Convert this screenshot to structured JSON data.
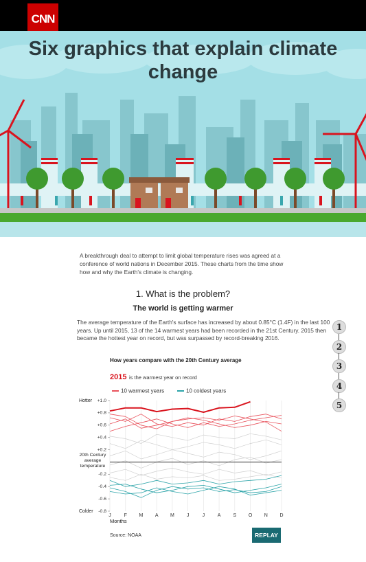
{
  "header": {
    "logo": "CNN"
  },
  "hero": {
    "title": "Six graphics that explain climate change"
  },
  "intro": "A breakthrough deal to attempt to limit global temperature rises was agreed at a conference of world nations in December 2015. These charts from the time show how and why the Earth's climate is changing.",
  "section": {
    "heading": "1. What is the problem?",
    "subheading": "The world is getting warmer",
    "paragraph": "The average temperature of the Earth's surface has increased by about 0.85°C (1.4F) in the last 100 years. Up until 2015, 13 of the 14 warmest years had been recorded in the 21st Century. 2015 then became the hottest year on record, but was surpassed by record-breaking 2016."
  },
  "nav": [
    "1",
    "2",
    "3",
    "4",
    "5"
  ],
  "chart_data": {
    "type": "line",
    "title": "How years compare with the 20th Century average",
    "highlight": {
      "name": "2015",
      "note": "is the warmest year on record",
      "color": "#d9141e",
      "values": [
        0.83,
        0.88,
        0.88,
        0.82,
        0.86,
        0.87,
        0.81,
        0.88,
        0.89,
        0.98,
        null,
        null
      ]
    },
    "categories": [
      "J",
      "F",
      "M",
      "A",
      "M",
      "J",
      "J",
      "A",
      "S",
      "O",
      "N",
      "D"
    ],
    "x_label": "Months",
    "y_top_label": "Hotter",
    "y_bottom_label": "Colder",
    "zero_label": "20th Century average temperature",
    "ylim": [
      -0.8,
      1.0
    ],
    "yticks": [
      {
        "value": 1.0,
        "label": "+1.0"
      },
      {
        "value": 0.8,
        "label": "+0.8"
      },
      {
        "value": 0.6,
        "label": "+0.6"
      },
      {
        "value": 0.4,
        "label": "+0.4"
      },
      {
        "value": 0.2,
        "label": "+0.2"
      },
      {
        "value": -0.2,
        "label": "-0.2"
      },
      {
        "value": -0.4,
        "label": "-0.4"
      },
      {
        "value": -0.6,
        "label": "-0.6"
      },
      {
        "value": -0.8,
        "label": "-0.8"
      }
    ],
    "zero_line": true,
    "series": [
      {
        "name": "10 warmest years",
        "color": "#e8505a",
        "lines": [
          [
            0.62,
            0.7,
            0.55,
            0.6,
            0.66,
            0.7,
            0.72,
            0.68,
            0.75,
            0.7,
            0.65,
            0.5
          ],
          [
            0.72,
            0.66,
            0.78,
            0.62,
            0.58,
            0.64,
            0.6,
            0.7,
            0.66,
            0.74,
            0.78,
            0.7
          ],
          [
            0.5,
            0.58,
            0.64,
            0.7,
            0.62,
            0.56,
            0.64,
            0.58,
            0.62,
            0.68,
            0.72,
            0.76
          ],
          [
            0.78,
            0.74,
            0.6,
            0.54,
            0.66,
            0.72,
            0.68,
            0.62,
            0.56,
            0.6,
            0.66,
            0.62
          ]
        ]
      },
      {
        "name": "10 coldest years",
        "color": "#2aa3a8",
        "lines": [
          [
            -0.42,
            -0.48,
            -0.58,
            -0.46,
            -0.4,
            -0.44,
            -0.42,
            -0.48,
            -0.45,
            -0.5,
            -0.48,
            -0.4
          ],
          [
            -0.38,
            -0.36,
            -0.44,
            -0.5,
            -0.46,
            -0.4,
            -0.38,
            -0.44,
            -0.5,
            -0.46,
            -0.42,
            -0.36
          ],
          [
            -0.48,
            -0.52,
            -0.5,
            -0.42,
            -0.48,
            -0.52,
            -0.46,
            -0.4,
            -0.44,
            -0.54,
            -0.5,
            -0.46
          ],
          [
            -0.3,
            -0.4,
            -0.36,
            -0.3,
            -0.36,
            -0.34,
            -0.3,
            -0.36,
            -0.32,
            -0.3,
            -0.28,
            -0.22
          ]
        ]
      }
    ],
    "other_years": {
      "color": "#cfcfcf",
      "lines": [
        [
          0.3,
          0.22,
          0.35,
          0.28,
          0.2,
          0.25,
          0.32,
          0.28,
          0.22,
          0.3,
          0.36,
          0.28
        ],
        [
          0.1,
          0.18,
          0.05,
          0.12,
          0.2,
          0.14,
          0.08,
          0.16,
          0.12,
          0.04,
          0.1,
          0.18
        ],
        [
          -0.05,
          0.02,
          -0.1,
          0.0,
          0.06,
          -0.04,
          0.02,
          -0.06,
          0.04,
          0.08,
          -0.02,
          0.04
        ],
        [
          -0.18,
          -0.12,
          -0.22,
          -0.15,
          -0.1,
          -0.16,
          -0.2,
          -0.12,
          -0.18,
          -0.14,
          -0.22,
          -0.16
        ],
        [
          0.42,
          0.38,
          0.3,
          0.45,
          0.4,
          0.35,
          0.44,
          0.4,
          0.38,
          0.46,
          0.42,
          0.36
        ],
        [
          -0.25,
          -0.3,
          -0.2,
          -0.28,
          -0.24,
          -0.26,
          -0.22,
          -0.3,
          -0.28,
          -0.24,
          -0.2,
          -0.26
        ]
      ]
    },
    "source": "Source: NOAA"
  },
  "button": "REPLAY"
}
